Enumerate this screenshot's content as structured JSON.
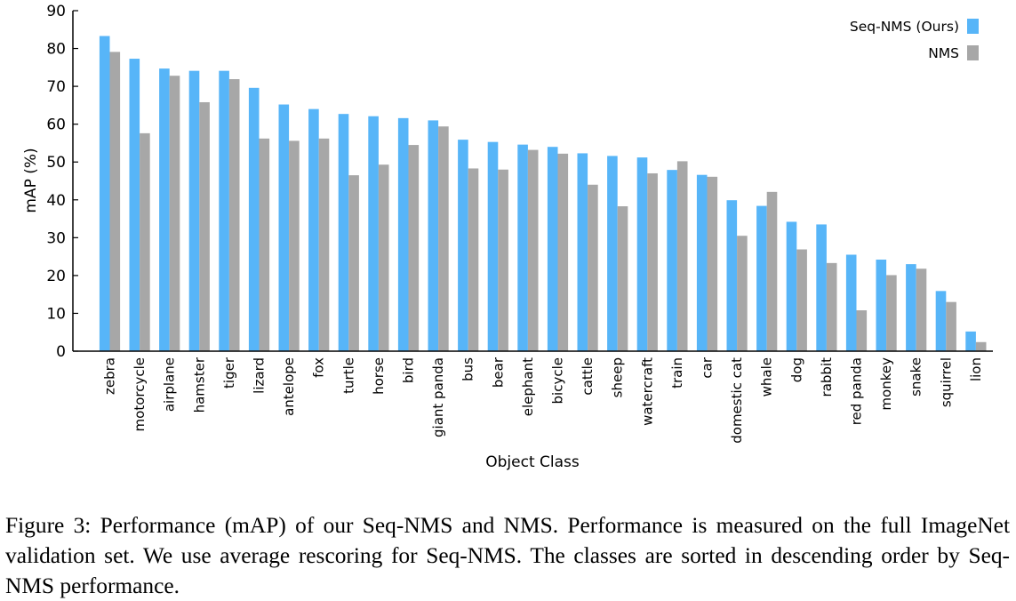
{
  "chart_data": {
    "type": "bar",
    "title": "",
    "xlabel": "Object Class",
    "ylabel": "mAP (%)",
    "ylim": [
      0,
      90
    ],
    "yticks": [
      0,
      10,
      20,
      30,
      40,
      50,
      60,
      70,
      80,
      90
    ],
    "grid": false,
    "legend_position": "top-right",
    "categories": [
      "zebra",
      "motorcycle",
      "airplane",
      "hamster",
      "tiger",
      "lizard",
      "antelope",
      "fox",
      "turtle",
      "horse",
      "bird",
      "giant panda",
      "bus",
      "bear",
      "elephant",
      "bicycle",
      "cattle",
      "sheep",
      "watercraft",
      "train",
      "car",
      "domestic cat",
      "whale",
      "dog",
      "rabbit",
      "red panda",
      "monkey",
      "snake",
      "squirrel",
      "lion"
    ],
    "series": [
      {
        "name": "Seq-NMS (Ours)",
        "color": "#57b5f8",
        "values": [
          83.3,
          77.3,
          74.7,
          74.1,
          74.1,
          69.6,
          65.2,
          64.0,
          62.7,
          62.1,
          61.6,
          61.0,
          55.9,
          55.3,
          54.6,
          54.0,
          52.3,
          51.6,
          51.2,
          47.9,
          46.6,
          39.9,
          38.4,
          34.2,
          33.5,
          25.5,
          24.2,
          23.0,
          15.9,
          5.2
        ]
      },
      {
        "name": "NMS",
        "color": "#a7a7a7",
        "values": [
          79.1,
          57.6,
          72.8,
          65.8,
          71.9,
          56.2,
          55.6,
          56.2,
          46.5,
          49.3,
          54.5,
          59.4,
          48.3,
          48.0,
          53.2,
          52.2,
          44.0,
          38.3,
          47.0,
          50.2,
          46.1,
          30.5,
          42.1,
          26.9,
          23.3,
          10.8,
          20.1,
          21.8,
          13.0,
          2.4
        ]
      }
    ]
  },
  "caption": "Figure 3: Performance (mAP) of our Seq-NMS and NMS. Performance is measured on the full ImageNet validation set. We use average rescoring for Seq-NMS. The classes are sorted in descending order by Seq-NMS performance."
}
